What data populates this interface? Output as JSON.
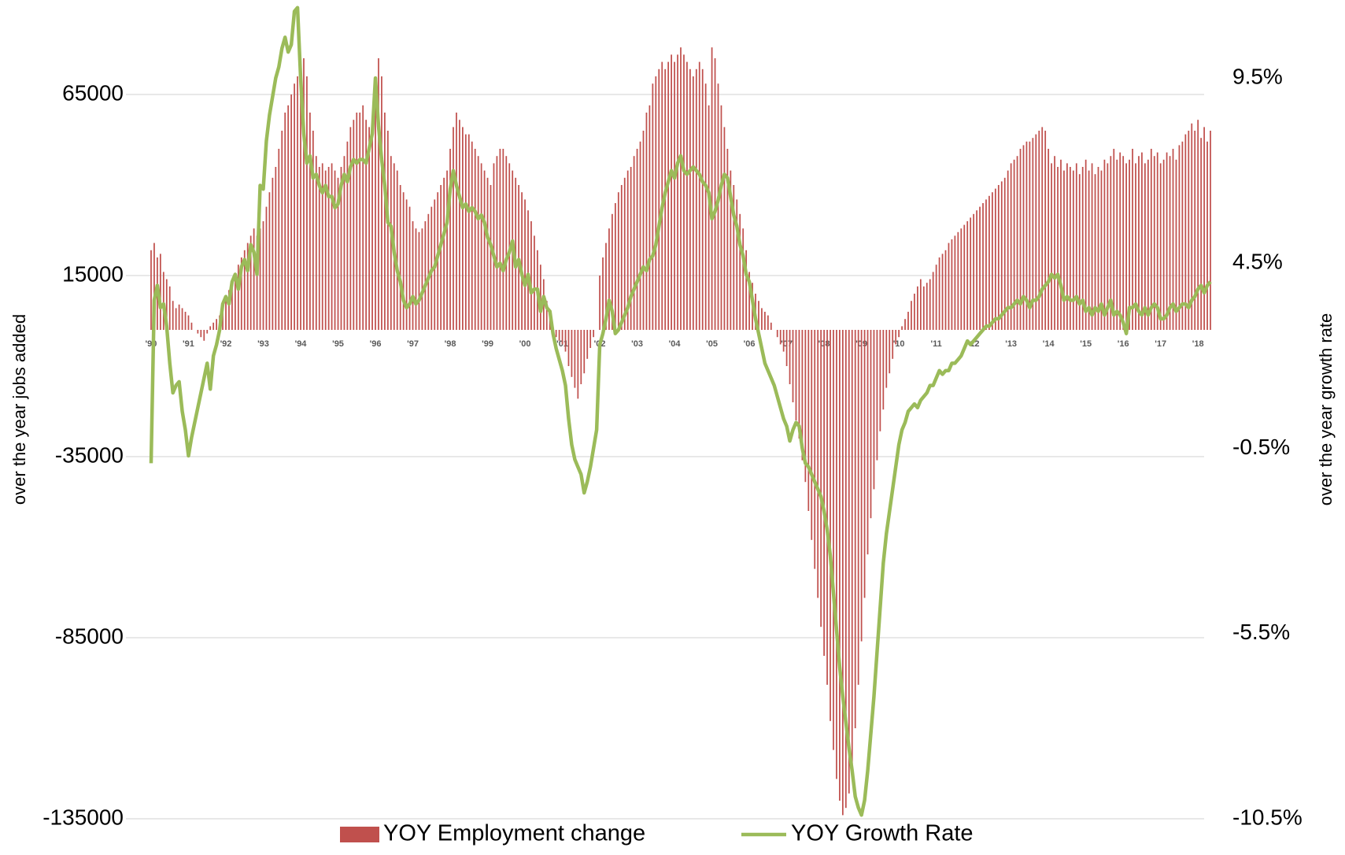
{
  "chart_data": {
    "type": "combo",
    "y_label": "over the year jobs added",
    "y2_label": "over the year growth rate",
    "ylim": [
      -135000,
      90000
    ],
    "yticks": [
      -135000,
      -85000,
      -35000,
      15000,
      65000
    ],
    "yticks_labels_note_free": null,
    "y2lim": [
      -10.5,
      11.5
    ],
    "y2ticks": [
      {
        "value": -10.5,
        "label": "-10.5%"
      },
      {
        "value": -5.5,
        "label": "-5.5%"
      },
      {
        "value": -0.5,
        "label": "-0.5%"
      },
      {
        "value": 4.5,
        "label": "4.5%"
      },
      {
        "value": 9.5,
        "label": "9.5%"
      }
    ],
    "grid": true,
    "legend": "bottom",
    "categories": [
      "'90",
      null,
      null,
      null,
      null,
      null,
      null,
      null,
      null,
      null,
      null,
      null,
      "'91",
      null,
      null,
      null,
      null,
      null,
      null,
      null,
      null,
      null,
      null,
      null,
      "'92",
      null,
      null,
      null,
      null,
      null,
      null,
      null,
      null,
      null,
      null,
      null,
      "'93",
      null,
      null,
      null,
      null,
      null,
      null,
      null,
      null,
      null,
      null,
      null,
      "'94",
      null,
      null,
      null,
      null,
      null,
      null,
      null,
      null,
      null,
      null,
      null,
      "'95",
      null,
      null,
      null,
      null,
      null,
      null,
      null,
      null,
      null,
      null,
      null,
      "'96",
      null,
      null,
      null,
      null,
      null,
      null,
      null,
      null,
      null,
      null,
      null,
      "'97",
      null,
      null,
      null,
      null,
      null,
      null,
      null,
      null,
      null,
      null,
      null,
      "'98",
      null,
      null,
      null,
      null,
      null,
      null,
      null,
      null,
      null,
      null,
      null,
      "'99",
      null,
      null,
      null,
      null,
      null,
      null,
      null,
      null,
      null,
      null,
      null,
      "'00",
      null,
      null,
      null,
      null,
      null,
      null,
      null,
      null,
      null,
      null,
      null,
      "'01",
      null,
      null,
      null,
      null,
      null,
      null,
      null,
      null,
      null,
      null,
      null,
      "'02",
      null,
      null,
      null,
      null,
      null,
      null,
      null,
      null,
      null,
      null,
      null,
      "'03",
      null,
      null,
      null,
      null,
      null,
      null,
      null,
      null,
      null,
      null,
      null,
      "'04",
      null,
      null,
      null,
      null,
      null,
      null,
      null,
      null,
      null,
      null,
      null,
      "'05",
      null,
      null,
      null,
      null,
      null,
      null,
      null,
      null,
      null,
      null,
      null,
      "'06",
      null,
      null,
      null,
      null,
      null,
      null,
      null,
      null,
      null,
      null,
      null,
      "'07",
      null,
      null,
      null,
      null,
      null,
      null,
      null,
      null,
      null,
      null,
      null,
      "'08",
      null,
      null,
      null,
      null,
      null,
      null,
      null,
      null,
      null,
      null,
      null,
      "'09",
      null,
      null,
      null,
      null,
      null,
      null,
      null,
      null,
      null,
      null,
      null,
      "'10",
      null,
      null,
      null,
      null,
      null,
      null,
      null,
      null,
      null,
      null,
      null,
      "'11",
      null,
      null,
      null,
      null,
      null,
      null,
      null,
      null,
      null,
      null,
      null,
      "'12",
      null,
      null,
      null,
      null,
      null,
      null,
      null,
      null,
      null,
      null,
      null,
      "'13",
      null,
      null,
      null,
      null,
      null,
      null,
      null,
      null,
      null,
      null,
      null,
      "'14",
      null,
      null,
      null,
      null,
      null,
      null,
      null,
      null,
      null,
      null,
      null,
      "'15",
      null,
      null,
      null,
      null,
      null,
      null,
      null,
      null,
      null,
      null,
      null,
      "'16",
      null,
      null,
      null,
      null,
      null,
      null,
      null,
      null,
      null,
      null,
      null,
      "'17",
      null,
      null,
      null,
      null,
      null,
      null,
      null,
      null,
      null,
      null,
      null,
      "'18",
      null,
      null,
      null,
      null
    ],
    "series": [
      {
        "name": "YOY Employment change",
        "type": "bar",
        "color": "#c0504d",
        "values": [
          22000,
          24000,
          20000,
          21000,
          16000,
          14000,
          12000,
          8000,
          6000,
          7000,
          6000,
          5000,
          4000,
          2000,
          0,
          -1000,
          -2000,
          -3000,
          -1000,
          1000,
          2000,
          3000,
          4000,
          5000,
          8000,
          11000,
          13000,
          15000,
          18000,
          20000,
          22000,
          24000,
          26000,
          28000,
          26000,
          28000,
          30000,
          34000,
          38000,
          42000,
          45000,
          50000,
          55000,
          60000,
          62000,
          65000,
          68000,
          70000,
          72000,
          75000,
          70000,
          60000,
          55000,
          48000,
          45000,
          46000,
          44000,
          45000,
          46000,
          44000,
          42000,
          45000,
          48000,
          52000,
          56000,
          58000,
          60000,
          60000,
          62000,
          58000,
          56000,
          55000,
          62000,
          75000,
          70000,
          60000,
          55000,
          48000,
          46000,
          44000,
          40000,
          38000,
          36000,
          34000,
          30000,
          28000,
          27000,
          28000,
          30000,
          32000,
          34000,
          36000,
          38000,
          40000,
          42000,
          44000,
          50000,
          56000,
          60000,
          58000,
          56000,
          54000,
          54000,
          52000,
          50000,
          48000,
          46000,
          44000,
          42000,
          40000,
          46000,
          48000,
          50000,
          50000,
          48000,
          46000,
          44000,
          42000,
          40000,
          38000,
          36000,
          33000,
          30000,
          26000,
          22000,
          18000,
          14000,
          8000,
          4000,
          0,
          -2000,
          -3000,
          -4000,
          -6000,
          -10000,
          -13000,
          -16000,
          -19000,
          -15000,
          -12000,
          -8000,
          -5000,
          -2000,
          0,
          15000,
          20000,
          24000,
          28000,
          32000,
          35000,
          38000,
          40000,
          42000,
          44000,
          45000,
          48000,
          50000,
          52000,
          55000,
          60000,
          62000,
          68000,
          70000,
          72000,
          74000,
          72000,
          74000,
          76000,
          74000,
          76000,
          78000,
          76000,
          74000,
          72000,
          70000,
          72000,
          74000,
          72000,
          68000,
          62000,
          78000,
          75000,
          68000,
          62000,
          56000,
          50000,
          44000,
          40000,
          36000,
          32000,
          28000,
          22000,
          16000,
          13000,
          10000,
          8000,
          6000,
          5000,
          4000,
          2000,
          0,
          -2000,
          -4000,
          -6000,
          -10000,
          -15000,
          -20000,
          -25000,
          -30000,
          -36000,
          -42000,
          -50000,
          -58000,
          -66000,
          -74000,
          -82000,
          -90000,
          -98000,
          -108000,
          -116000,
          -124000,
          -130000,
          -134000,
          -132000,
          -128000,
          -120000,
          -110000,
          -98000,
          -86000,
          -74000,
          -62000,
          -52000,
          -44000,
          -36000,
          -28000,
          -22000,
          -16000,
          -12000,
          -8000,
          -4000,
          -2000,
          1000,
          3000,
          5000,
          8000,
          10000,
          12000,
          14000,
          12000,
          13000,
          14000,
          16000,
          18000,
          20000,
          21000,
          22000,
          24000,
          25000,
          26000,
          27000,
          28000,
          29000,
          30000,
          31000,
          32000,
          33000,
          34000,
          35000,
          36000,
          37000,
          38000,
          39000,
          40000,
          41000,
          42000,
          44000,
          46000,
          47000,
          48000,
          50000,
          51000,
          52000,
          52000,
          53000,
          54000,
          55000,
          56000,
          55000,
          50000,
          46000,
          48000,
          45000,
          47000,
          44000,
          46000,
          45000,
          44000,
          46000,
          43000,
          45000,
          47000,
          44000,
          46000,
          43000,
          45000,
          44000,
          47000,
          46000,
          48000,
          50000,
          47000,
          49000,
          48000,
          46000,
          47000,
          50000,
          46000,
          48000,
          49000,
          46000,
          47000,
          50000,
          48000,
          49000,
          46000,
          47000,
          49000,
          48000,
          50000,
          47000,
          51000,
          52000,
          54000,
          55000,
          57000,
          55000,
          58000,
          53000,
          56000,
          52000,
          55000
        ]
      },
      {
        "name": "YOY Growth Rate",
        "type": "line",
        "axis": "y2",
        "color": "#9bbb59",
        "values": [
          -0.9,
          3.5,
          3.9,
          3.3,
          3.4,
          2.8,
          1.8,
          1.0,
          1.2,
          1.3,
          0.5,
          0.0,
          -0.7,
          -0.2,
          0.2,
          0.6,
          1.0,
          1.4,
          1.8,
          1.1,
          2.0,
          2.3,
          2.7,
          3.4,
          3.6,
          3.4,
          4.0,
          4.2,
          3.8,
          4.4,
          4.6,
          4.3,
          5.0,
          4.8,
          4.2,
          6.6,
          6.5,
          7.8,
          8.5,
          9.0,
          9.5,
          9.8,
          10.3,
          10.6,
          10.2,
          10.4,
          11.3,
          11.4,
          9.5,
          8.0,
          7.2,
          7.4,
          6.8,
          6.9,
          6.6,
          6.4,
          6.6,
          6.3,
          6.3,
          6.0,
          6.1,
          6.6,
          6.9,
          6.7,
          7.1,
          7.3,
          7.2,
          7.3,
          7.3,
          7.2,
          7.6,
          8.0,
          9.5,
          8.2,
          7.3,
          6.6,
          5.6,
          5.5,
          4.8,
          4.3,
          4.0,
          3.5,
          3.3,
          3.4,
          3.6,
          3.4,
          3.5,
          3.7,
          3.9,
          4.1,
          4.3,
          4.4,
          4.7,
          5.0,
          5.3,
          5.6,
          6.5,
          7.0,
          6.6,
          6.3,
          6.0,
          6.1,
          5.9,
          6.0,
          5.9,
          5.7,
          5.8,
          5.6,
          5.2,
          5.0,
          4.7,
          4.4,
          4.5,
          4.3,
          4.6,
          4.8,
          5.1,
          4.4,
          4.6,
          4.2,
          3.9,
          4.2,
          3.7,
          3.8,
          3.8,
          3.2,
          3.6,
          3.3,
          3.2,
          2.6,
          2.2,
          1.9,
          1.6,
          1.2,
          0.3,
          -0.4,
          -0.8,
          -1.0,
          -1.2,
          -1.7,
          -1.4,
          -1.0,
          -0.5,
          0.0,
          2.3,
          2.6,
          3.0,
          3.5,
          3.2,
          2.6,
          2.7,
          2.9,
          3.1,
          3.3,
          3.6,
          3.8,
          4.0,
          4.2,
          4.4,
          4.3,
          4.6,
          4.7,
          5.0,
          5.5,
          6.0,
          6.4,
          6.7,
          7.0,
          6.8,
          7.2,
          7.4,
          7.0,
          6.9,
          7.0,
          7.1,
          7.0,
          6.9,
          6.7,
          6.6,
          6.4,
          5.7,
          5.9,
          6.2,
          6.6,
          6.9,
          6.8,
          6.3,
          5.8,
          5.5,
          5.0,
          4.7,
          4.2,
          4.0,
          3.5,
          3.0,
          2.6,
          2.2,
          1.8,
          1.6,
          1.4,
          1.2,
          0.9,
          0.6,
          0.3,
          0.1,
          -0.3,
          0.0,
          0.2,
          0.1,
          -0.5,
          -0.9,
          -1.0,
          -1.2,
          -1.4,
          -1.6,
          -1.8,
          -2.2,
          -2.7,
          -3.4,
          -4.4,
          -5.4,
          -6.4,
          -7.2,
          -7.9,
          -8.6,
          -9.2,
          -9.9,
          -10.2,
          -10.4,
          -10.0,
          -9.2,
          -8.2,
          -7.2,
          -6.0,
          -4.8,
          -3.6,
          -2.8,
          -2.2,
          -1.6,
          -1.0,
          -0.4,
          0.0,
          0.2,
          0.5,
          0.6,
          0.7,
          0.6,
          0.8,
          0.9,
          1.0,
          1.2,
          1.2,
          1.4,
          1.6,
          1.5,
          1.6,
          1.6,
          1.8,
          1.8,
          1.9,
          2.0,
          2.2,
          2.4,
          2.3,
          2.4,
          2.5,
          2.6,
          2.7,
          2.8,
          2.8,
          2.9,
          3.0,
          3.0,
          3.1,
          3.2,
          3.3,
          3.3,
          3.4,
          3.5,
          3.4,
          3.6,
          3.5,
          3.3,
          3.5,
          3.5,
          3.6,
          3.8,
          3.9,
          4.0,
          4.2,
          4.1,
          4.2,
          3.9,
          3.5,
          3.6,
          3.5,
          3.5,
          3.6,
          3.4,
          3.5,
          3.2,
          3.3,
          3.1,
          3.3,
          3.2,
          3.4,
          3.1,
          3.3,
          3.5,
          3.1,
          3.2,
          3.1,
          2.9,
          2.6,
          3.3,
          3.3,
          3.4,
          3.2,
          3.1,
          3.3,
          3.1,
          3.3,
          3.4,
          3.3,
          3.0,
          3.0,
          3.1,
          3.3,
          3.4,
          3.2,
          3.3,
          3.4,
          3.4,
          3.3,
          3.5,
          3.6,
          3.8,
          3.9,
          3.7,
          3.9,
          4.0
        ]
      }
    ]
  }
}
